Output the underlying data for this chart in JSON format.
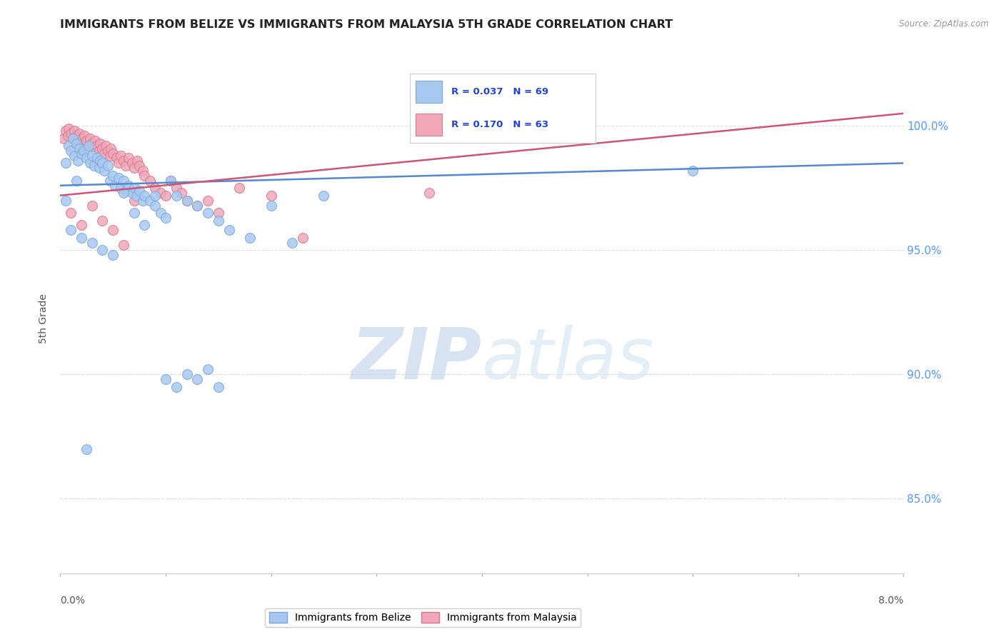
{
  "title": "IMMIGRANTS FROM BELIZE VS IMMIGRANTS FROM MALAYSIA 5TH GRADE CORRELATION CHART",
  "source": "Source: ZipAtlas.com",
  "ylabel": "5th Grade",
  "xlim": [
    0.0,
    8.0
  ],
  "ylim": [
    82.0,
    102.5
  ],
  "belize_color": "#a8c8f0",
  "belize_edge_color": "#7aaad8",
  "malaysia_color": "#f0a8b8",
  "malaysia_edge_color": "#d87890",
  "belize_R": 0.037,
  "belize_N": 69,
  "malaysia_R": 0.17,
  "malaysia_N": 63,
  "belize_line_color": "#5588cc",
  "malaysia_line_color": "#cc5577",
  "belize_line_x0": 0.0,
  "belize_line_y0": 97.6,
  "belize_line_x1": 8.0,
  "belize_line_y1": 98.5,
  "malaysia_line_x0": 0.0,
  "malaysia_line_y0": 97.2,
  "malaysia_line_x1": 8.0,
  "malaysia_line_y1": 100.5,
  "belize_scatter_x": [
    0.05,
    0.08,
    0.1,
    0.12,
    0.13,
    0.15,
    0.17,
    0.18,
    0.2,
    0.22,
    0.25,
    0.27,
    0.28,
    0.3,
    0.32,
    0.35,
    0.37,
    0.38,
    0.4,
    0.42,
    0.45,
    0.47,
    0.5,
    0.52,
    0.55,
    0.57,
    0.6,
    0.62,
    0.65,
    0.68,
    0.7,
    0.72,
    0.75,
    0.78,
    0.8,
    0.85,
    0.9,
    0.95,
    1.0,
    1.05,
    1.1,
    1.2,
    1.3,
    1.4,
    1.5,
    1.6,
    1.8,
    2.0,
    2.2,
    2.5,
    0.1,
    0.2,
    0.3,
    0.4,
    0.5,
    0.6,
    0.7,
    0.8,
    0.9,
    1.0,
    1.1,
    1.2,
    1.3,
    1.4,
    1.5,
    6.0,
    0.05,
    0.15,
    0.25
  ],
  "belize_scatter_y": [
    98.5,
    99.2,
    99.0,
    99.5,
    98.8,
    99.3,
    98.6,
    99.1,
    98.9,
    99.0,
    98.7,
    99.2,
    98.5,
    98.8,
    98.4,
    98.7,
    98.3,
    98.6,
    98.5,
    98.2,
    98.4,
    97.8,
    98.0,
    97.6,
    97.9,
    97.5,
    97.8,
    97.4,
    97.6,
    97.3,
    97.5,
    97.2,
    97.4,
    97.0,
    97.2,
    97.0,
    96.8,
    96.5,
    96.3,
    97.8,
    97.2,
    97.0,
    96.8,
    96.5,
    96.2,
    95.8,
    95.5,
    96.8,
    95.3,
    97.2,
    95.8,
    95.5,
    95.3,
    95.0,
    94.8,
    97.3,
    96.5,
    96.0,
    97.2,
    89.8,
    89.5,
    90.0,
    89.8,
    90.2,
    89.5,
    98.2,
    97.0,
    97.8,
    87.0
  ],
  "malaysia_scatter_x": [
    0.03,
    0.05,
    0.07,
    0.08,
    0.1,
    0.12,
    0.13,
    0.15,
    0.17,
    0.18,
    0.2,
    0.22,
    0.23,
    0.25,
    0.27,
    0.28,
    0.3,
    0.32,
    0.33,
    0.35,
    0.37,
    0.38,
    0.4,
    0.42,
    0.43,
    0.45,
    0.47,
    0.48,
    0.5,
    0.53,
    0.55,
    0.57,
    0.6,
    0.62,
    0.65,
    0.68,
    0.7,
    0.73,
    0.75,
    0.78,
    0.8,
    0.85,
    0.9,
    0.95,
    1.0,
    1.05,
    1.1,
    1.15,
    1.2,
    1.3,
    1.4,
    1.5,
    1.7,
    2.0,
    2.3,
    0.1,
    0.2,
    0.3,
    0.4,
    0.5,
    0.6,
    0.7,
    3.5
  ],
  "malaysia_scatter_y": [
    99.5,
    99.8,
    99.6,
    99.9,
    99.7,
    99.5,
    99.8,
    99.6,
    99.4,
    99.7,
    99.5,
    99.3,
    99.6,
    99.4,
    99.2,
    99.5,
    99.3,
    99.1,
    99.4,
    99.2,
    99.0,
    99.3,
    99.1,
    98.9,
    99.2,
    99.0,
    98.8,
    99.1,
    98.9,
    98.7,
    98.5,
    98.8,
    98.6,
    98.4,
    98.7,
    98.5,
    98.3,
    98.6,
    98.4,
    98.2,
    98.0,
    97.8,
    97.5,
    97.3,
    97.2,
    97.8,
    97.5,
    97.3,
    97.0,
    96.8,
    97.0,
    96.5,
    97.5,
    97.2,
    95.5,
    96.5,
    96.0,
    96.8,
    96.2,
    95.8,
    95.2,
    97.0,
    97.3
  ],
  "background_color": "#ffffff",
  "grid_color": "#dddddd",
  "legend_text_color": "#2244cc",
  "axis_label_color": "#5599ff",
  "yticks": [
    85.0,
    90.0,
    95.0,
    100.0
  ]
}
